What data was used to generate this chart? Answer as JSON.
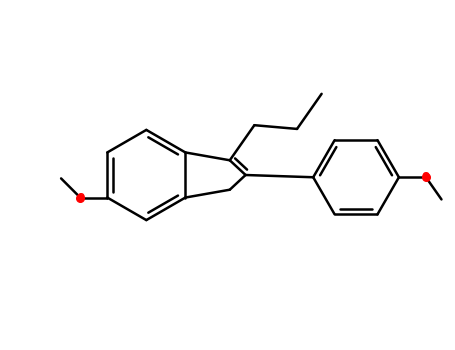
{
  "bg_color": "#ffffff",
  "bond_color": "#000000",
  "oxygen_color": "#ff0000",
  "line_width": 1.8,
  "figsize": [
    4.55,
    3.5
  ],
  "dpi": 100,
  "xlim": [
    0,
    10
  ],
  "ylim": [
    0,
    7.7
  ]
}
